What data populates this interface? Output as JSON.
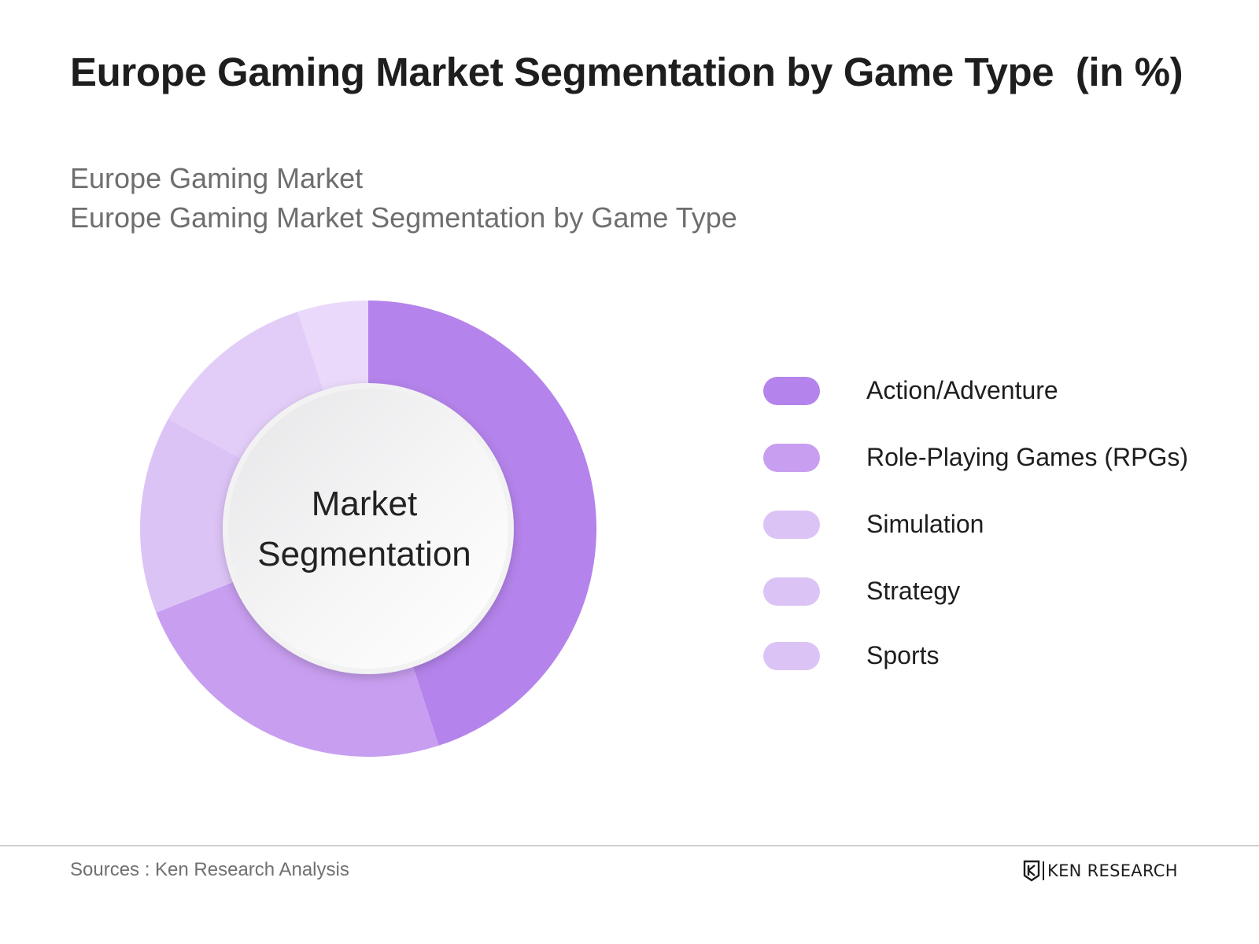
{
  "title": "Europe Gaming Market Segmentation by Game Type  (in %)",
  "subtitle_lines": [
    "Europe Gaming Market",
    "Europe Gaming Market Segmentation by Game Type"
  ],
  "chart_data": {
    "type": "pie",
    "variant": "donut",
    "center_label": [
      "Market",
      "Segmentation"
    ],
    "legend_position": "right",
    "categories": [
      "Action/Adventure",
      "Role-Playing Games (RPGs)",
      "Simulation",
      "Strategy",
      "Sports"
    ],
    "values": [
      45,
      24,
      14,
      12,
      5
    ],
    "colors": [
      "#b483eb",
      "#c89ef0",
      "#dcc3f6",
      "#e2cdf8",
      "#ead9fa"
    ],
    "legend_colors": [
      "#b483eb",
      "#c89ef0",
      "#dcc3f6",
      "#dcc3f6",
      "#dcc3f6"
    ]
  },
  "footer": {
    "source": "Sources : Ken Research Analysis",
    "brand": "KEN RESEARCH",
    "brand_icon": "ken-research-logo-icon"
  }
}
